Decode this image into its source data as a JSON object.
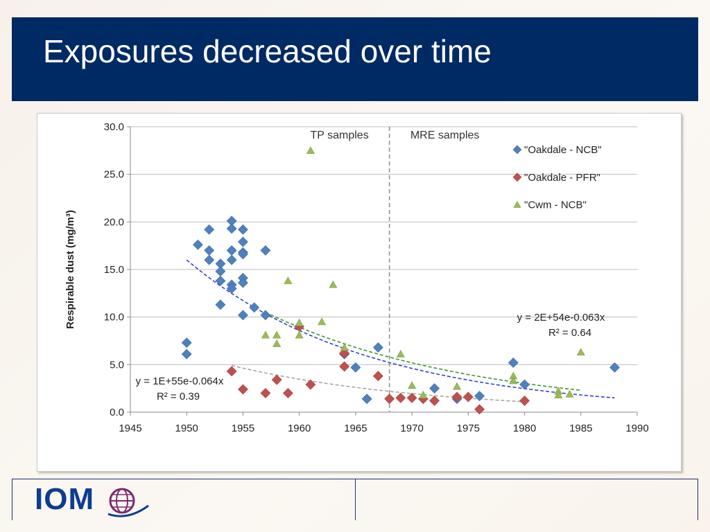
{
  "slide": {
    "title": "Exposures decreased over time",
    "logo_text": "IOM",
    "logo_icon": "globe-icon"
  },
  "colors": {
    "title_bg": "#002a64",
    "oakdale_ncb": "#4f81bd",
    "oakdale_pfr": "#c0504d",
    "cwm_ncb": "#9bbb59",
    "trend_ncb": "#2f3fd6",
    "trend_cwm": "#3a9a2a",
    "trend_pfr": "#a6a6a6"
  },
  "chart_data": {
    "type": "scatter",
    "ylabel": "Respirable dust (mg/m³)",
    "xlabel": "",
    "xlim": [
      1945,
      1990
    ],
    "ylim": [
      0,
      30
    ],
    "x_ticks": [
      "1945",
      "1950",
      "1955",
      "1960",
      "1965",
      "1970",
      "1975",
      "1980",
      "1985",
      "1990"
    ],
    "y_ticks": [
      "0.0",
      "5.0",
      "10.0",
      "15.0",
      "20.0",
      "25.0",
      "30.0"
    ],
    "grid": "horizontal",
    "legend_position": "top-right",
    "divider": {
      "x": 1968,
      "left_label": "TP samples",
      "right_label": "MRE samples"
    },
    "series": [
      {
        "name": "\"Oakdale - NCB\"",
        "marker": "diamond",
        "points": [
          [
            1950,
            7.3
          ],
          [
            1950,
            6.1
          ],
          [
            1951,
            17.6
          ],
          [
            1952,
            19.2
          ],
          [
            1952,
            17.0
          ],
          [
            1952,
            16.0
          ],
          [
            1953,
            15.6
          ],
          [
            1953,
            14.8
          ],
          [
            1953,
            13.8
          ],
          [
            1953,
            11.3
          ],
          [
            1954,
            20.1
          ],
          [
            1954,
            19.3
          ],
          [
            1954,
            17.0
          ],
          [
            1954,
            16.0
          ],
          [
            1954,
            13.4
          ],
          [
            1954,
            13.0
          ],
          [
            1955,
            19.2
          ],
          [
            1955,
            17.9
          ],
          [
            1955,
            16.8
          ],
          [
            1955,
            16.6
          ],
          [
            1955,
            14.1
          ],
          [
            1955,
            13.6
          ],
          [
            1955,
            10.2
          ],
          [
            1956,
            11.0
          ],
          [
            1957,
            17.0
          ],
          [
            1957,
            10.2
          ],
          [
            1964,
            6.1
          ],
          [
            1965,
            4.7
          ],
          [
            1966,
            1.4
          ],
          [
            1967,
            6.8
          ],
          [
            1972,
            2.5
          ],
          [
            1974,
            1.4
          ],
          [
            1976,
            1.7
          ],
          [
            1979,
            5.2
          ],
          [
            1980,
            2.9
          ],
          [
            1988,
            4.7
          ]
        ]
      },
      {
        "name": "\"Oakdale - PFR\"",
        "marker": "diamond",
        "points": [
          [
            1954,
            4.3
          ],
          [
            1955,
            2.4
          ],
          [
            1957,
            2.0
          ],
          [
            1958,
            3.4
          ],
          [
            1959,
            2.0
          ],
          [
            1960,
            9.0
          ],
          [
            1961,
            2.9
          ],
          [
            1964,
            4.8
          ],
          [
            1964,
            6.2
          ],
          [
            1967,
            3.8
          ],
          [
            1968,
            1.4
          ],
          [
            1969,
            1.5
          ],
          [
            1970,
            1.5
          ],
          [
            1971,
            1.4
          ],
          [
            1972,
            1.2
          ],
          [
            1974,
            1.6
          ],
          [
            1975,
            1.6
          ],
          [
            1976,
            0.3
          ],
          [
            1980,
            1.2
          ]
        ]
      },
      {
        "name": "\"Cwm - NCB\"",
        "marker": "triangle",
        "points": [
          [
            1957,
            8.1
          ],
          [
            1958,
            8.1
          ],
          [
            1958,
            7.2
          ],
          [
            1959,
            13.8
          ],
          [
            1960,
            9.4
          ],
          [
            1960,
            8.1
          ],
          [
            1961,
            27.5
          ],
          [
            1962,
            9.5
          ],
          [
            1963,
            13.4
          ],
          [
            1964,
            6.8
          ],
          [
            1969,
            6.1
          ],
          [
            1970,
            2.8
          ],
          [
            1971,
            1.8
          ],
          [
            1974,
            2.7
          ],
          [
            1979,
            3.8
          ],
          [
            1979,
            3.3
          ],
          [
            1983,
            2.2
          ],
          [
            1983,
            1.8
          ],
          [
            1984,
            1.9
          ],
          [
            1985,
            6.3
          ]
        ]
      }
    ],
    "trendlines": [
      {
        "series": "\"Oakdale - NCB\"",
        "from": 1950,
        "to": 1988,
        "y_start": 16.0,
        "y_end": 1.5
      },
      {
        "series": "\"Cwm - NCB\"",
        "from": 1957,
        "to": 1985,
        "y_start": 10.5,
        "y_end": 2.3
      },
      {
        "series": "\"Oakdale - PFR\"",
        "from": 1954,
        "to": 1980,
        "y_start": 4.9,
        "y_end": 1.1
      }
    ],
    "annotations": [
      {
        "line1": "y = 2E+54e-0.063x",
        "line2": "R² = 0.64"
      },
      {
        "line1": "y = 1E+55e-0.064x",
        "line2": "R² = 0.39"
      }
    ]
  }
}
